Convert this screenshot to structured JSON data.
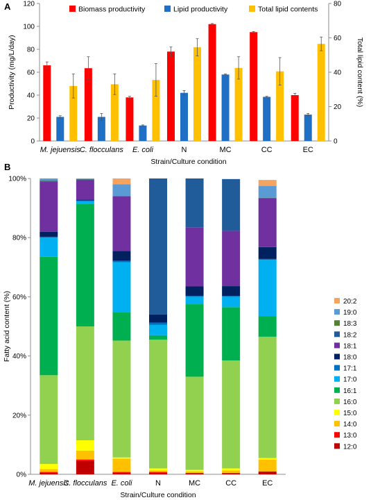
{
  "panel_labels": [
    "A",
    "B"
  ],
  "chart_data": [
    {
      "type": "bar",
      "title": "",
      "categories": [
        "M. jejuensis",
        "C. flocculans",
        "E. coli",
        "N",
        "MC",
        "CC",
        "EC"
      ],
      "category_italic": [
        true,
        true,
        true,
        false,
        false,
        false,
        false
      ],
      "xlabel": "Strain/Culture condition",
      "ylabel": "Productivity (mg/L/day)",
      "y2label": "Total lipid content (%)",
      "ylim": [
        0,
        120
      ],
      "yticks": [
        0,
        20,
        40,
        60,
        80,
        100,
        120
      ],
      "y2lim": [
        0,
        80
      ],
      "y2ticks": [
        0,
        20,
        40,
        60,
        80
      ],
      "legend_position": "top",
      "grid": false,
      "series": [
        {
          "name": "Biomass productivity",
          "axis": "left",
          "color": "#ff0000",
          "values": [
            66,
            63.5,
            38,
            78,
            102,
            95,
            40
          ],
          "errors": [
            3,
            10,
            1,
            4,
            0.5,
            0.5,
            1.5
          ]
        },
        {
          "name": "Lipid productivity",
          "axis": "left",
          "color": "#1f6fc5",
          "values": [
            21,
            21,
            13.5,
            42,
            58,
            38.5,
            23
          ],
          "errors": [
            1,
            3,
            0.5,
            2,
            0.5,
            0.5,
            1
          ]
        },
        {
          "name": "Total lipid contents",
          "axis": "right",
          "color": "#ffc000",
          "values": [
            32,
            33,
            35.5,
            54.5,
            42.5,
            40.5,
            56.5
          ],
          "errors": [
            7,
            6,
            9.5,
            5,
            6.5,
            8,
            4
          ]
        }
      ]
    },
    {
      "type": "bar",
      "stacked": true,
      "title": "",
      "categories": [
        "M. jejuensis",
        "C. flocculans",
        "E. coli",
        "N",
        "MC",
        "CC",
        "EC"
      ],
      "category_italic": [
        true,
        true,
        true,
        false,
        false,
        false,
        false
      ],
      "xlabel": "Strain/Culture condition",
      "ylabel": "Fatty acid content (%)",
      "ylim": [
        0,
        100
      ],
      "yticks": [
        "0%",
        "20%",
        "40%",
        "60%",
        "80%",
        "100%"
      ],
      "grid": false,
      "legend_position": "right",
      "series": [
        {
          "name": "12:0",
          "color": "#c00000",
          "values": [
            0.5,
            4.5,
            0.5,
            0.5,
            0.3,
            0.3,
            0.8
          ]
        },
        {
          "name": "13:0",
          "color": "#ff0000",
          "values": [
            0.3,
            0.5,
            0.3,
            0.3,
            0.2,
            0.2,
            0.2
          ]
        },
        {
          "name": "14:0",
          "color": "#ffc000",
          "values": [
            1,
            3,
            4.5,
            0.5,
            0.5,
            0.8,
            4
          ]
        },
        {
          "name": "15:0",
          "color": "#ffff00",
          "values": [
            1.7,
            3.5,
            0.4,
            0.7,
            0.5,
            0.7,
            0.5
          ]
        },
        {
          "name": "16:0",
          "color": "#92d050",
          "values": [
            30,
            38.5,
            39.5,
            43.5,
            31.5,
            36.5,
            41
          ]
        },
        {
          "name": "16:1",
          "color": "#00b050",
          "values": [
            40,
            41.5,
            9.5,
            1.5,
            24.5,
            18,
            7
          ]
        },
        {
          "name": "17:0",
          "color": "#00b0f0",
          "values": [
            6.5,
            0.8,
            17,
            3.5,
            2.5,
            3.5,
            19
          ]
        },
        {
          "name": "17:1",
          "color": "#0070c0",
          "values": [
            0.3,
            0.3,
            0.5,
            0.8,
            0.3,
            0.3,
            0.3
          ]
        },
        {
          "name": "18:0",
          "color": "#002060",
          "values": [
            1.7,
            0.3,
            3.3,
            2.7,
            3.2,
            3.3,
            4
          ]
        },
        {
          "name": "18:1",
          "color": "#7030a0",
          "values": [
            17,
            6.5,
            18.5,
            0,
            20,
            18.7,
            16.5
          ]
        },
        {
          "name": "18:2",
          "color": "#1f5c99",
          "values": [
            0.2,
            0.3,
            0,
            46,
            16.5,
            17.5,
            0
          ]
        },
        {
          "name": "18:3",
          "color": "#548235",
          "values": [
            0.1,
            0.1,
            0,
            0,
            0,
            0,
            0.2
          ]
        },
        {
          "name": "19:0",
          "color": "#5b9bd5",
          "values": [
            0.7,
            0.2,
            4,
            0,
            0,
            0,
            4
          ]
        },
        {
          "name": "20:2",
          "color": "#f4a460",
          "values": [
            0,
            0,
            2,
            0,
            0,
            0,
            2
          ]
        }
      ]
    }
  ]
}
